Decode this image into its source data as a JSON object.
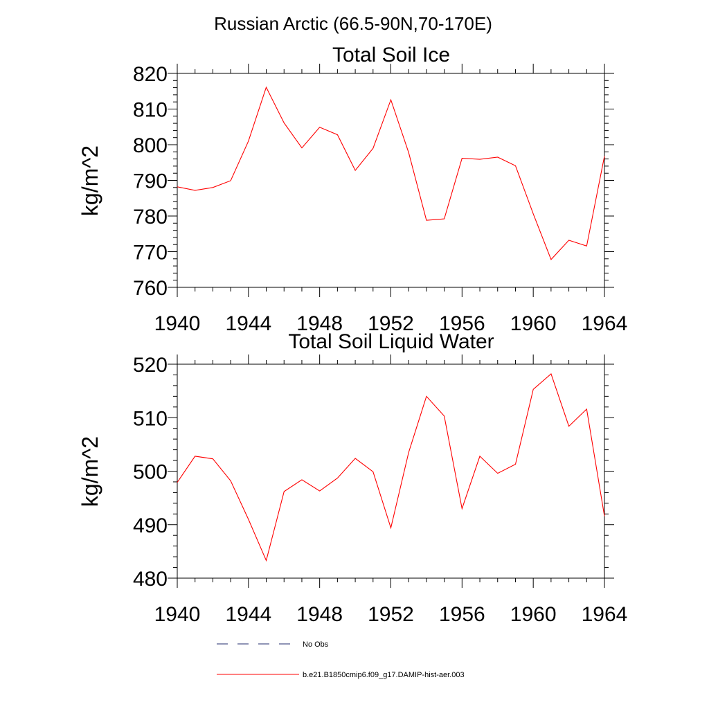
{
  "figure": {
    "main_title": "Russian Arctic (66.5-90N,70-170E)"
  },
  "colors": {
    "model_line": "#ff0000",
    "obs_line": "#1f2a6b",
    "axis": "#000000"
  },
  "chart_data": [
    {
      "type": "line",
      "title": "Total Soil Ice",
      "xlabel": "",
      "ylabel": "kg/m^2",
      "xlim": [
        1940,
        1964
      ],
      "ylim": [
        760,
        820
      ],
      "x_ticks": [
        1940,
        1944,
        1948,
        1952,
        1956,
        1960,
        1964
      ],
      "y_ticks": [
        760,
        770,
        780,
        790,
        800,
        810,
        820
      ],
      "grid": false,
      "series": [
        {
          "name": "b.e21.B1850cmip6.f09_g17.DAMIP-hist-aer.003",
          "x": [
            1940,
            1941,
            1942,
            1943,
            1944,
            1945,
            1946,
            1947,
            1948,
            1949,
            1950,
            1951,
            1952,
            1953,
            1954,
            1955,
            1956,
            1957,
            1958,
            1959,
            1960,
            1961,
            1962,
            1963,
            1964
          ],
          "values": [
            788.2,
            787.2,
            788.0,
            789.9,
            801.0,
            816.1,
            806.1,
            799.1,
            804.9,
            802.8,
            792.8,
            799.0,
            812.6,
            797.8,
            778.8,
            779.2,
            796.2,
            795.9,
            796.5,
            794.1,
            780.6,
            767.8,
            773.2,
            771.6,
            796.8
          ]
        }
      ]
    },
    {
      "type": "line",
      "title": "Total Soil Liquid Water",
      "xlabel": "",
      "ylabel": "kg/m^2",
      "xlim": [
        1940,
        1964
      ],
      "ylim": [
        480,
        520
      ],
      "x_ticks": [
        1940,
        1944,
        1948,
        1952,
        1956,
        1960,
        1964
      ],
      "y_ticks": [
        480,
        490,
        500,
        510,
        520
      ],
      "grid": false,
      "series": [
        {
          "name": "b.e21.B1850cmip6.f09_g17.DAMIP-hist-aer.003",
          "x": [
            1940,
            1941,
            1942,
            1943,
            1944,
            1945,
            1946,
            1947,
            1948,
            1949,
            1950,
            1951,
            1952,
            1953,
            1954,
            1955,
            1956,
            1957,
            1958,
            1959,
            1960,
            1961,
            1962,
            1963,
            1964
          ],
          "values": [
            497.9,
            502.8,
            502.3,
            498.2,
            491.0,
            483.3,
            496.2,
            498.4,
            496.3,
            498.7,
            502.4,
            499.9,
            489.4,
            503.5,
            514.0,
            510.3,
            493.0,
            502.8,
            499.6,
            501.3,
            515.3,
            518.2,
            508.4,
            511.6,
            491.6
          ]
        }
      ]
    }
  ],
  "legend": {
    "items": [
      {
        "label": "No Obs",
        "style": "dashed",
        "color": "#1f2a6b"
      },
      {
        "label": "b.e21.B1850cmip6.f09_g17.DAMIP-hist-aer.003",
        "style": "solid",
        "color": "#ff0000"
      }
    ]
  }
}
